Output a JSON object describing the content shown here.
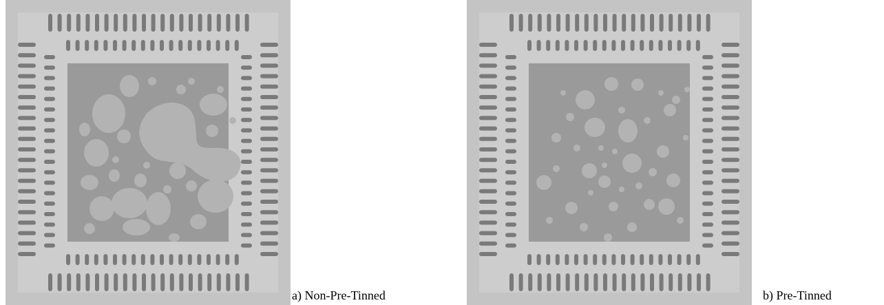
{
  "figure": {
    "panels": [
      {
        "id": "a",
        "caption": "a) Non-Pre-Tinned",
        "colors": {
          "frame": "#c4c4c4",
          "pad": "#9a9a9a",
          "lead": "#7a7a7a",
          "void": "#b3b3b3"
        }
      },
      {
        "id": "b",
        "caption": "b) Pre-Tinned",
        "colors": {
          "frame": "#c4c4c4",
          "pad": "#9a9a9a",
          "lead": "#7a7a7a",
          "void": "#b3b3b3"
        }
      }
    ]
  }
}
